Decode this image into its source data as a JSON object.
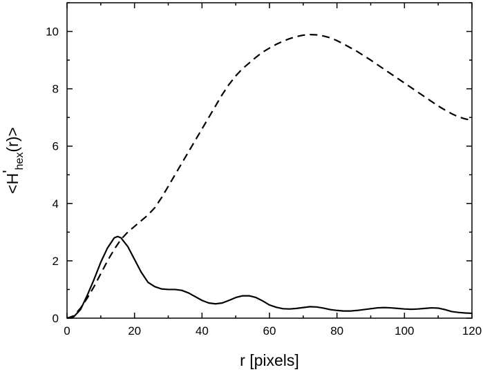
{
  "chart_data": {
    "type": "line",
    "xlabel": "r [pixels]",
    "ylabel": {
      "prefix": "<H",
      "prime": "'",
      "subscript": "hex",
      "suffix": "(r)>"
    },
    "xlim": [
      0,
      120
    ],
    "ylim": [
      0,
      11
    ],
    "x_ticks": [
      0,
      20,
      40,
      60,
      80,
      100,
      120
    ],
    "y_ticks": [
      0,
      2,
      4,
      6,
      8,
      10
    ],
    "grid": false,
    "legend": "none",
    "series": [
      {
        "style": "solid",
        "color": "#000000",
        "points": [
          [
            0,
            0
          ],
          [
            2,
            0.05
          ],
          [
            4,
            0.3
          ],
          [
            6,
            0.8
          ],
          [
            8,
            1.35
          ],
          [
            10,
            1.95
          ],
          [
            12,
            2.45
          ],
          [
            14,
            2.8
          ],
          [
            15,
            2.85
          ],
          [
            16,
            2.8
          ],
          [
            18,
            2.5
          ],
          [
            20,
            2.05
          ],
          [
            22,
            1.6
          ],
          [
            24,
            1.25
          ],
          [
            26,
            1.1
          ],
          [
            28,
            1.02
          ],
          [
            30,
            1.0
          ],
          [
            32,
            1.0
          ],
          [
            34,
            0.97
          ],
          [
            36,
            0.88
          ],
          [
            38,
            0.75
          ],
          [
            40,
            0.62
          ],
          [
            42,
            0.53
          ],
          [
            44,
            0.5
          ],
          [
            46,
            0.53
          ],
          [
            48,
            0.62
          ],
          [
            50,
            0.72
          ],
          [
            52,
            0.78
          ],
          [
            54,
            0.78
          ],
          [
            56,
            0.72
          ],
          [
            58,
            0.6
          ],
          [
            60,
            0.46
          ],
          [
            62,
            0.38
          ],
          [
            64,
            0.33
          ],
          [
            66,
            0.32
          ],
          [
            68,
            0.34
          ],
          [
            70,
            0.37
          ],
          [
            72,
            0.4
          ],
          [
            74,
            0.39
          ],
          [
            76,
            0.35
          ],
          [
            78,
            0.3
          ],
          [
            80,
            0.27
          ],
          [
            82,
            0.25
          ],
          [
            84,
            0.25
          ],
          [
            86,
            0.27
          ],
          [
            88,
            0.3
          ],
          [
            90,
            0.33
          ],
          [
            92,
            0.36
          ],
          [
            94,
            0.37
          ],
          [
            96,
            0.36
          ],
          [
            98,
            0.34
          ],
          [
            100,
            0.32
          ],
          [
            102,
            0.31
          ],
          [
            104,
            0.32
          ],
          [
            106,
            0.34
          ],
          [
            108,
            0.36
          ],
          [
            110,
            0.35
          ],
          [
            112,
            0.3
          ],
          [
            114,
            0.23
          ],
          [
            116,
            0.2
          ],
          [
            118,
            0.18
          ],
          [
            120,
            0.17
          ]
        ]
      },
      {
        "style": "dashed",
        "color": "#000000",
        "points": [
          [
            0,
            0
          ],
          [
            2,
            0.08
          ],
          [
            4,
            0.35
          ],
          [
            6,
            0.7
          ],
          [
            8,
            1.1
          ],
          [
            10,
            1.55
          ],
          [
            12,
            2.0
          ],
          [
            14,
            2.4
          ],
          [
            16,
            2.75
          ],
          [
            18,
            3.0
          ],
          [
            20,
            3.2
          ],
          [
            22,
            3.4
          ],
          [
            24,
            3.6
          ],
          [
            26,
            3.85
          ],
          [
            28,
            4.2
          ],
          [
            30,
            4.6
          ],
          [
            32,
            5.0
          ],
          [
            34,
            5.4
          ],
          [
            36,
            5.8
          ],
          [
            38,
            6.2
          ],
          [
            40,
            6.6
          ],
          [
            42,
            7.0
          ],
          [
            44,
            7.4
          ],
          [
            46,
            7.8
          ],
          [
            48,
            8.15
          ],
          [
            50,
            8.45
          ],
          [
            52,
            8.7
          ],
          [
            54,
            8.9
          ],
          [
            56,
            9.1
          ],
          [
            58,
            9.28
          ],
          [
            60,
            9.42
          ],
          [
            62,
            9.55
          ],
          [
            64,
            9.66
          ],
          [
            66,
            9.75
          ],
          [
            68,
            9.82
          ],
          [
            70,
            9.87
          ],
          [
            72,
            9.89
          ],
          [
            74,
            9.88
          ],
          [
            76,
            9.84
          ],
          [
            78,
            9.78
          ],
          [
            80,
            9.68
          ],
          [
            82,
            9.56
          ],
          [
            84,
            9.43
          ],
          [
            86,
            9.3
          ],
          [
            88,
            9.15
          ],
          [
            90,
            9.0
          ],
          [
            92,
            8.84
          ],
          [
            94,
            8.68
          ],
          [
            96,
            8.52
          ],
          [
            98,
            8.36
          ],
          [
            100,
            8.2
          ],
          [
            102,
            8.04
          ],
          [
            104,
            7.88
          ],
          [
            106,
            7.72
          ],
          [
            108,
            7.56
          ],
          [
            110,
            7.4
          ],
          [
            112,
            7.26
          ],
          [
            114,
            7.13
          ],
          [
            116,
            7.02
          ],
          [
            118,
            6.95
          ],
          [
            120,
            6.9
          ]
        ]
      }
    ]
  }
}
